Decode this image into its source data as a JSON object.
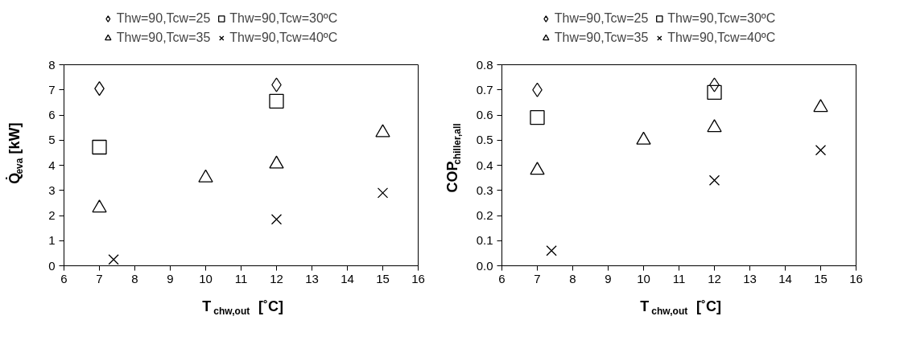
{
  "chart_data": [
    {
      "type": "scatter",
      "xlabel": "T$_{chw,out}$ [˚C]",
      "ylabel": "Q̇$_{eva}$ [kW]",
      "xlim": [
        6,
        16
      ],
      "xticks": [
        6,
        7,
        8,
        9,
        10,
        11,
        12,
        13,
        14,
        15,
        16
      ],
      "ylim": [
        0,
        8
      ],
      "yticks": [
        0,
        1,
        2,
        3,
        4,
        5,
        6,
        7,
        8
      ],
      "grid": false,
      "legend": "top",
      "series": [
        {
          "name": "Thw=90,Tcw=25",
          "color": "#000000",
          "marker": "diamond",
          "x": [
            7,
            12
          ],
          "values": [
            7.05,
            7.2
          ]
        },
        {
          "name": "Thw=90,Tcw=30ºC",
          "color": "#000000",
          "marker": "square",
          "x": [
            7,
            12
          ],
          "values": [
            4.72,
            6.55
          ]
        },
        {
          "name": "Thw=90,Tcw=35",
          "color": "#000000",
          "marker": "triangle",
          "x": [
            7,
            10,
            12,
            15
          ],
          "values": [
            2.3,
            3.5,
            4.05,
            5.3
          ]
        },
        {
          "name": "Thw=90,Tcw=40ºC",
          "color": "#000000",
          "marker": "cross",
          "x": [
            7.4,
            12,
            15
          ],
          "values": [
            0.25,
            1.85,
            2.9
          ]
        }
      ]
    },
    {
      "type": "scatter",
      "xlabel": "T$_{chw,out}$ [˚C]",
      "ylabel": "COP$_{chiller,all}$",
      "xlim": [
        6,
        16
      ],
      "xticks": [
        6,
        7,
        8,
        9,
        10,
        11,
        12,
        13,
        14,
        15,
        16
      ],
      "ylim": [
        0,
        0.8
      ],
      "yticks": [
        {
          "value": 0,
          "label": "0.0"
        },
        0.1,
        0.2,
        0.3,
        0.4,
        0.5,
        0.6,
        0.7,
        0.8
      ],
      "grid": false,
      "legend": "top",
      "series": [
        {
          "name": "Thw=90,Tcw=25",
          "color": "#000000",
          "marker": "diamond",
          "x": [
            7,
            12
          ],
          "values": [
            0.7,
            0.72
          ]
        },
        {
          "name": "Thw=90,Tcw=30ºC",
          "color": "#000000",
          "marker": "square",
          "x": [
            7,
            12
          ],
          "values": [
            0.59,
            0.69
          ]
        },
        {
          "name": "Thw=90,Tcw=35",
          "color": "#000000",
          "marker": "triangle",
          "x": [
            7,
            10,
            12,
            15
          ],
          "values": [
            0.38,
            0.5,
            0.55,
            0.63
          ]
        },
        {
          "name": "Thw=90,Tcw=40ºC",
          "color": "#000000",
          "marker": "cross",
          "x": [
            7.4,
            12,
            15
          ],
          "values": [
            0.06,
            0.34,
            0.46
          ]
        }
      ]
    }
  ]
}
